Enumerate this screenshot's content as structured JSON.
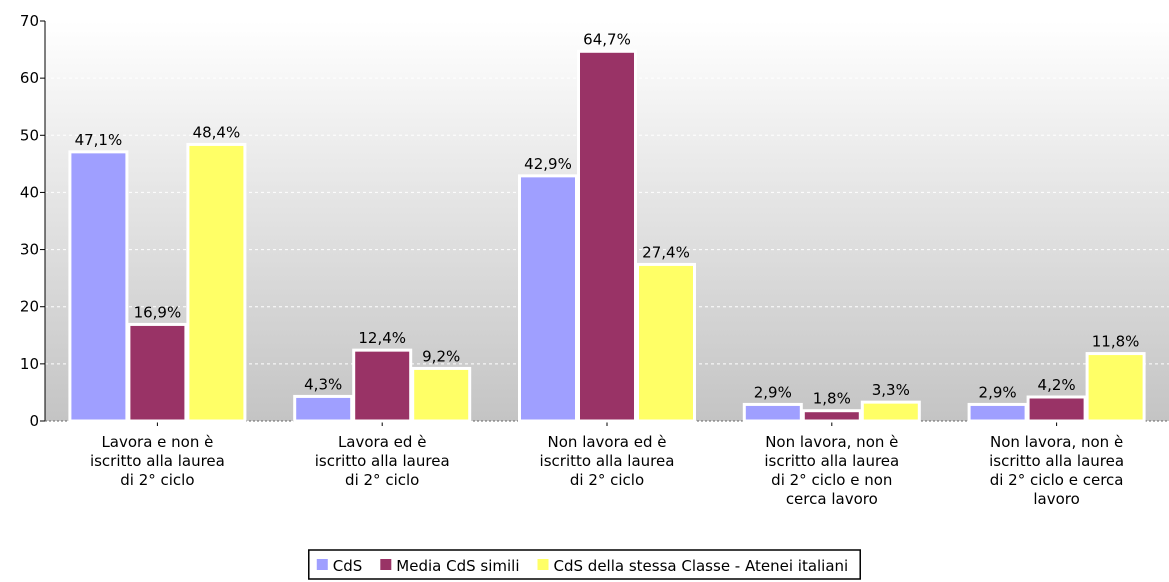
{
  "chart_data": {
    "type": "bar",
    "categories": [
      "Lavora e non è\niscritto alla laurea\ndi 2° ciclo",
      "Lavora ed è\niscritto alla laurea\ndi 2° ciclo",
      "Non lavora ed è\niscritto alla laurea\ndi 2° ciclo",
      "Non lavora, non è\niscritto alla laurea\ndi 2° ciclo e non\ncerca lavoro",
      "Non lavora, non è\niscritto alla laurea\ndi 2° ciclo e cerca\nlavoro"
    ],
    "series": [
      {
        "name": "CdS",
        "color": "#9f9fff",
        "values": [
          47.1,
          4.3,
          42.9,
          2.9,
          2.9
        ],
        "value_labels": [
          "47,1%",
          "4,3%",
          "42,9%",
          "2,9%",
          "2,9%"
        ]
      },
      {
        "name": "Media CdS simili",
        "color": "#993366",
        "values": [
          16.9,
          12.4,
          64.7,
          1.8,
          4.2
        ],
        "value_labels": [
          "16,9%",
          "12,4%",
          "64,7%",
          "1,8%",
          "4,2%"
        ]
      },
      {
        "name": "CdS della stessa Classe - Atenei italiani",
        "color": "#ffff66",
        "values": [
          48.4,
          9.2,
          27.4,
          3.3,
          11.8
        ],
        "value_labels": [
          "48,4%",
          "9,2%",
          "27,4%",
          "3,3%",
          "11,8%"
        ]
      }
    ],
    "ylim": [
      0,
      70
    ],
    "yticks": [
      0,
      10,
      20,
      30,
      40,
      50,
      60,
      70
    ],
    "grid": true,
    "legend": "bottom"
  }
}
